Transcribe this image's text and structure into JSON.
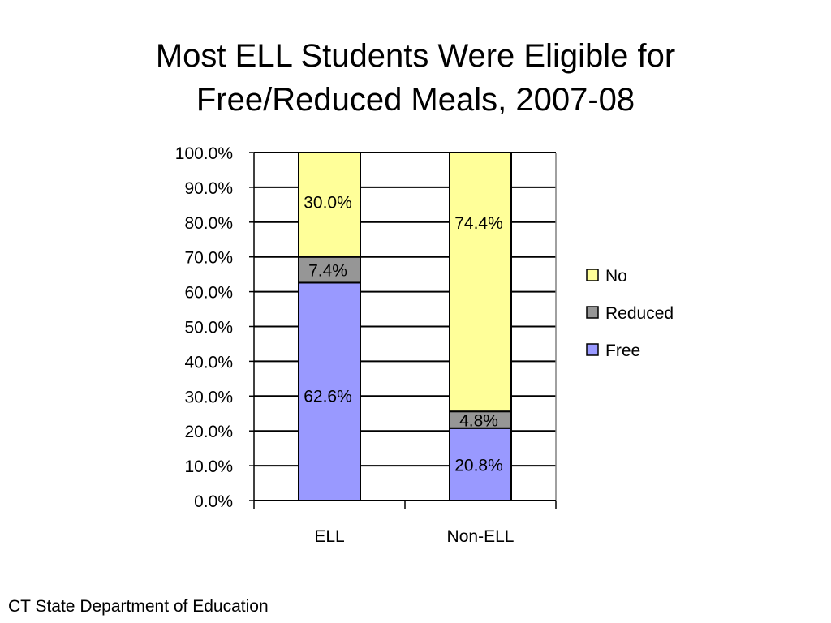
{
  "title": {
    "line1": "Most ELL Students Were Eligible for",
    "line2": "Free/Reduced Meals, 2007-08"
  },
  "source": "CT State Department of Education",
  "chart_data": {
    "type": "bar",
    "stacked": true,
    "categories": [
      "ELL",
      "Non-ELL"
    ],
    "series": [
      {
        "name": "Free",
        "values": [
          62.6,
          20.8
        ],
        "labels": [
          "62.6%",
          "20.8%"
        ],
        "color": "#9999ff"
      },
      {
        "name": "Reduced",
        "values": [
          7.4,
          4.8
        ],
        "labels": [
          "7.4%",
          "4.8%"
        ],
        "color": "#969696"
      },
      {
        "name": "No",
        "values": [
          30.0,
          74.4
        ],
        "labels": [
          "30.0%",
          "74.4%"
        ],
        "color": "#ffff99"
      }
    ],
    "ylim": [
      0,
      100
    ],
    "yticks": [
      "0.0%",
      "10.0%",
      "20.0%",
      "30.0%",
      "40.0%",
      "50.0%",
      "60.0%",
      "70.0%",
      "80.0%",
      "90.0%",
      "100.0%"
    ],
    "grid": true,
    "legend": {
      "position": "right",
      "order": [
        "No",
        "Reduced",
        "Free"
      ]
    }
  }
}
